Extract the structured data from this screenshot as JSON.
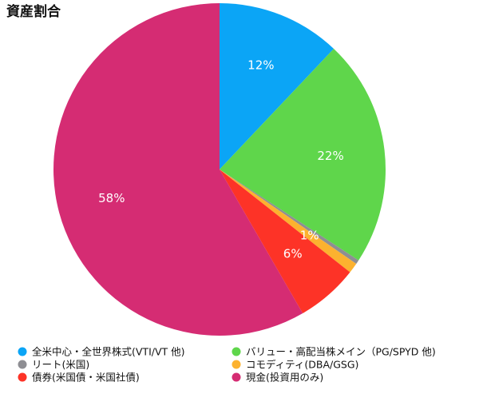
{
  "chart_data": {
    "type": "pie",
    "title": "資産割合",
    "categories": [
      "全米中心・全世界株式(VTI/VT 他)",
      "バリュー・高配当株メイン（PG/SPYD 他)",
      "リート(米国)",
      "コモディティ(DBA/GSG)",
      "債券(米国債・米国社債)",
      "現金(投資用のみ)"
    ],
    "values": [
      12,
      22,
      0.4,
      1,
      6,
      58
    ],
    "value_labels": [
      "12%",
      "22%",
      null,
      "1%",
      "6%",
      "58%"
    ],
    "colors": [
      "#0ba5f6",
      "#5fd64b",
      "#8e8e93",
      "#fcb22f",
      "#fd3327",
      "#d52c73"
    ],
    "legend": "bottom"
  }
}
